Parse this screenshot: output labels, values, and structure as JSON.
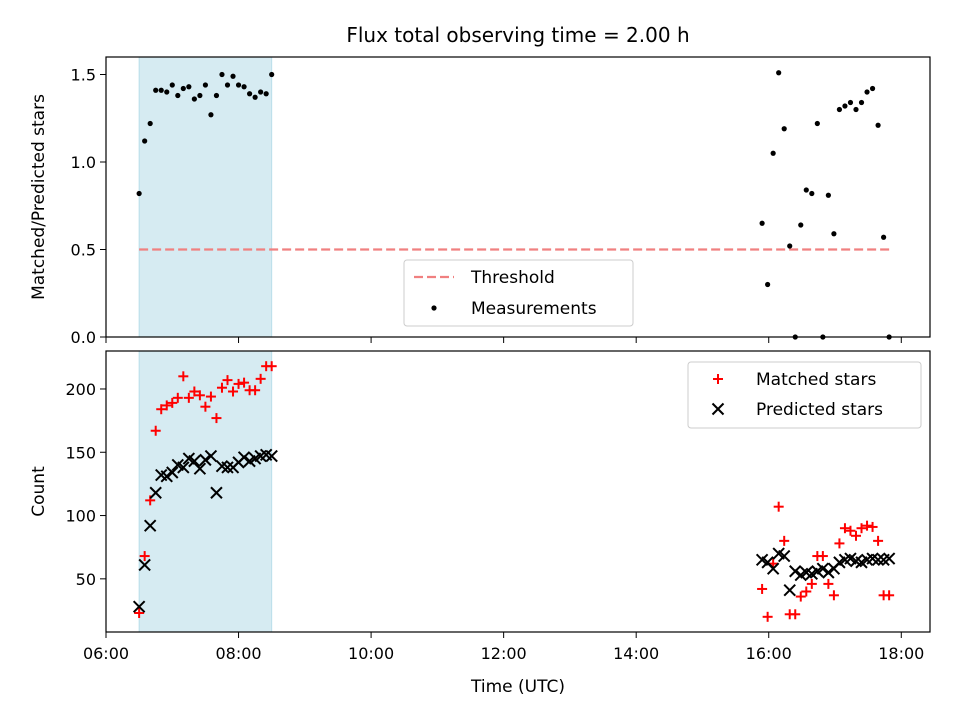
{
  "figure": {
    "title": "Flux total observing time = 2.00 h"
  },
  "colors": {
    "shade": "#add8e6",
    "threshold": "#f08080",
    "matched": "#ff0000",
    "predicted": "#000000",
    "measurement": "#000000"
  },
  "chart_data": [
    {
      "type": "scatter",
      "id": "ratio",
      "xlabel": "",
      "ylabel": "Matched/Predicted stars",
      "xlim": [
        "06:00",
        "18:26"
      ],
      "ylim": [
        0,
        1.6
      ],
      "yticks": [
        0.0,
        0.5,
        1.0,
        1.5
      ],
      "ytick_labels": [
        "0.0",
        "0.5",
        "1.0",
        "1.5"
      ],
      "shaded_span": [
        "06:30",
        "08:30"
      ],
      "legend_position": "lower-center",
      "threshold": {
        "name": "Threshold",
        "value": 0.5,
        "x_range": [
          "06:30",
          "17:50"
        ]
      },
      "series": [
        {
          "name": "Measurements",
          "x": [
            "06:30",
            "06:35",
            "06:40",
            "06:45",
            "06:50",
            "06:55",
            "07:00",
            "07:05",
            "07:10",
            "07:15",
            "07:20",
            "07:25",
            "07:30",
            "07:35",
            "07:40",
            "07:45",
            "07:50",
            "07:55",
            "08:00",
            "08:05",
            "08:10",
            "08:15",
            "08:20",
            "08:25",
            "08:30",
            "15:54",
            "15:59",
            "16:04",
            "16:09",
            "16:14",
            "16:19",
            "16:24",
            "16:29",
            "16:34",
            "16:39",
            "16:44",
            "16:49",
            "16:54",
            "16:59",
            "17:04",
            "17:09",
            "17:14",
            "17:19",
            "17:24",
            "17:29",
            "17:34",
            "17:39",
            "17:44",
            "17:49"
          ],
          "y": [
            0.82,
            1.12,
            1.22,
            1.41,
            1.41,
            1.4,
            1.44,
            1.38,
            1.42,
            1.43,
            1.36,
            1.38,
            1.44,
            1.27,
            1.38,
            1.5,
            1.44,
            1.49,
            1.44,
            1.43,
            1.39,
            1.37,
            1.4,
            1.39,
            1.5,
            0.65,
            0.3,
            1.05,
            1.51,
            1.19,
            0.52,
            0.0,
            0.64,
            0.84,
            0.82,
            1.22,
            0.0,
            0.81,
            0.59,
            1.3,
            1.32,
            1.34,
            1.3,
            1.34,
            1.4,
            1.42,
            1.21,
            0.57,
            0.0
          ]
        }
      ]
    },
    {
      "type": "scatter",
      "id": "counts",
      "xlabel": "Time (UTC)",
      "ylabel": "Count",
      "xlim": [
        "06:00",
        "18:26"
      ],
      "ylim": [
        8,
        230
      ],
      "yticks": [
        50,
        100,
        150,
        200
      ],
      "ytick_labels": [
        "50",
        "100",
        "150",
        "200"
      ],
      "xticks": [
        "06:00",
        "08:00",
        "10:00",
        "12:00",
        "14:00",
        "16:00",
        "18:00"
      ],
      "shaded_span": [
        "06:30",
        "08:30"
      ],
      "legend_position": "upper-right",
      "series": [
        {
          "name": "Matched stars",
          "marker": "plus",
          "x": [
            "06:30",
            "06:35",
            "06:40",
            "06:45",
            "06:50",
            "06:55",
            "07:00",
            "07:05",
            "07:10",
            "07:15",
            "07:20",
            "07:25",
            "07:30",
            "07:35",
            "07:40",
            "07:45",
            "07:50",
            "07:55",
            "08:00",
            "08:05",
            "08:10",
            "08:15",
            "08:20",
            "08:25",
            "08:30",
            "15:54",
            "15:59",
            "16:04",
            "16:09",
            "16:14",
            "16:19",
            "16:24",
            "16:29",
            "16:34",
            "16:39",
            "16:44",
            "16:49",
            "16:54",
            "16:59",
            "17:04",
            "17:09",
            "17:14",
            "17:19",
            "17:24",
            "17:29",
            "17:34",
            "17:39",
            "17:44",
            "17:49"
          ],
          "y": [
            23,
            68,
            112,
            167,
            184,
            187,
            189,
            193,
            210,
            193,
            198,
            195,
            186,
            194,
            177,
            201,
            207,
            198,
            204,
            205,
            199,
            199,
            208,
            218,
            218,
            42,
            20,
            62,
            107,
            80,
            22,
            22,
            36,
            40,
            46,
            68,
            68,
            46,
            37,
            78,
            90,
            88,
            84,
            90,
            92,
            91,
            80,
            37,
            37
          ]
        },
        {
          "name": "Predicted stars",
          "marker": "x",
          "x": [
            "06:30",
            "06:35",
            "06:40",
            "06:45",
            "06:50",
            "06:55",
            "07:00",
            "07:05",
            "07:10",
            "07:15",
            "07:20",
            "07:25",
            "07:30",
            "07:35",
            "07:40",
            "07:45",
            "07:50",
            "07:55",
            "08:00",
            "08:05",
            "08:10",
            "08:15",
            "08:20",
            "08:25",
            "08:30",
            "15:54",
            "15:59",
            "16:04",
            "16:09",
            "16:14",
            "16:19",
            "16:24",
            "16:29",
            "16:34",
            "16:39",
            "16:44",
            "16:49",
            "16:54",
            "16:59",
            "17:04",
            "17:09",
            "17:14",
            "17:19",
            "17:24",
            "17:29",
            "17:34",
            "17:39",
            "17:44",
            "17:49"
          ],
          "y": [
            28,
            61,
            92,
            118,
            132,
            131,
            134,
            140,
            138,
            145,
            143,
            137,
            144,
            147,
            118,
            139,
            138,
            138,
            142,
            146,
            143,
            145,
            147,
            148,
            147,
            65,
            63,
            58,
            70,
            68,
            41,
            56,
            53,
            55,
            54,
            56,
            58,
            55,
            58,
            63,
            65,
            66,
            64,
            63,
            65,
            66,
            65,
            65,
            66
          ]
        }
      ]
    }
  ]
}
